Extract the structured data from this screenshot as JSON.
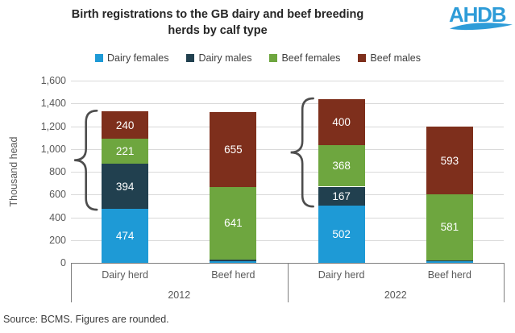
{
  "title": {
    "line1": "Birth registrations to the GB dairy and beef breeding",
    "line2": "herds by calf type"
  },
  "logo": {
    "text": "AHDB",
    "color": "#2E9CD8"
  },
  "legend": {
    "items": [
      {
        "label": "Dairy females",
        "color": "#1E9AD6"
      },
      {
        "label": "Dairy males",
        "color": "#21404F"
      },
      {
        "label": "Beef females",
        "color": "#6EA63F"
      },
      {
        "label": "Beef males",
        "color": "#7E2F1C"
      }
    ]
  },
  "source": "Source: BCMS. Figures are rounded.",
  "chart_data": {
    "type": "bar",
    "stacked": true,
    "title": "Birth registrations to the GB dairy and beef breeding herds by calf type",
    "ylabel": "Thousand head",
    "ylim": [
      0,
      1600
    ],
    "ytick_interval": 200,
    "yticks": [
      "0",
      "200",
      "400",
      "600",
      "800",
      "1,000",
      "1,200",
      "1,400",
      "1,600"
    ],
    "grid": true,
    "legend_position": "top",
    "series": [
      "Dairy females",
      "Dairy males",
      "Beef females",
      "Beef males"
    ],
    "groups": [
      {
        "label": "2012",
        "bars": [
          {
            "category": "Dairy herd",
            "brace": true,
            "segments": [
              {
                "series": "Dairy females",
                "value": 474,
                "labeled": true
              },
              {
                "series": "Dairy males",
                "value": 394,
                "labeled": true
              },
              {
                "series": "Beef females",
                "value": 221,
                "labeled": true
              },
              {
                "series": "Beef males",
                "value": 240,
                "labeled": true
              }
            ]
          },
          {
            "category": "Beef herd",
            "brace": false,
            "segments": [
              {
                "series": "Dairy females",
                "value": 15,
                "labeled": false
              },
              {
                "series": "Dairy males",
                "value": 12,
                "labeled": false
              },
              {
                "series": "Beef females",
                "value": 641,
                "labeled": true
              },
              {
                "series": "Beef males",
                "value": 655,
                "labeled": true
              }
            ]
          }
        ]
      },
      {
        "label": "2022",
        "bars": [
          {
            "category": "Dairy herd",
            "brace": true,
            "segments": [
              {
                "series": "Dairy females",
                "value": 502,
                "labeled": true
              },
              {
                "series": "Dairy males",
                "value": 167,
                "labeled": true
              },
              {
                "series": "Beef females",
                "value": 368,
                "labeled": true
              },
              {
                "series": "Beef males",
                "value": 400,
                "labeled": true
              }
            ]
          },
          {
            "category": "Beef herd",
            "brace": false,
            "segments": [
              {
                "series": "Dairy females",
                "value": 16,
                "labeled": false
              },
              {
                "series": "Dairy males",
                "value": 5,
                "labeled": false
              },
              {
                "series": "Beef females",
                "value": 581,
                "labeled": true
              },
              {
                "series": "Beef males",
                "value": 593,
                "labeled": true
              }
            ]
          }
        ]
      }
    ]
  }
}
